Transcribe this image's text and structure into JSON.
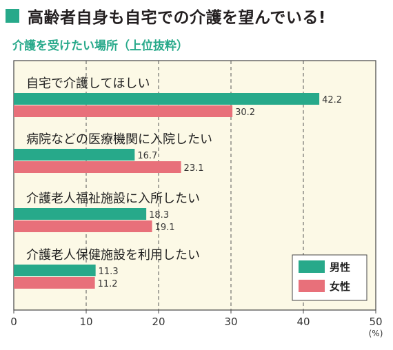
{
  "heading": {
    "text": "高齢者自身も自宅での介護を望んでいる!"
  },
  "subtitle": "介護を受けたい場所（上位抜粋）",
  "colors": {
    "accent": "#27a98a",
    "male": "#27a98a",
    "female": "#e8707a",
    "plot_bg": "#fcf9e6"
  },
  "chart_data": {
    "type": "bar",
    "orientation": "horizontal",
    "categories": [
      "自宅で介護してほしい",
      "病院などの医療機関に入院したい",
      "介護老人福祉施設に入所したい",
      "介護老人保健施設を利用したい"
    ],
    "series": [
      {
        "name": "男性",
        "values": [
          42.2,
          16.7,
          18.3,
          11.3
        ]
      },
      {
        "name": "女性",
        "values": [
          30.2,
          23.1,
          19.1,
          11.2
        ]
      }
    ],
    "value_labels": [
      [
        "42.2",
        "16.7",
        "18.3",
        "11.3"
      ],
      [
        "30.2",
        "23.1",
        "19.1",
        "11.2"
      ]
    ],
    "xlim": [
      0,
      50
    ],
    "xticks": [
      "0",
      "10",
      "20",
      "30",
      "40",
      "50"
    ],
    "unit": "(%)",
    "grid": "vertical dashed",
    "legend_position": "bottom-right"
  }
}
